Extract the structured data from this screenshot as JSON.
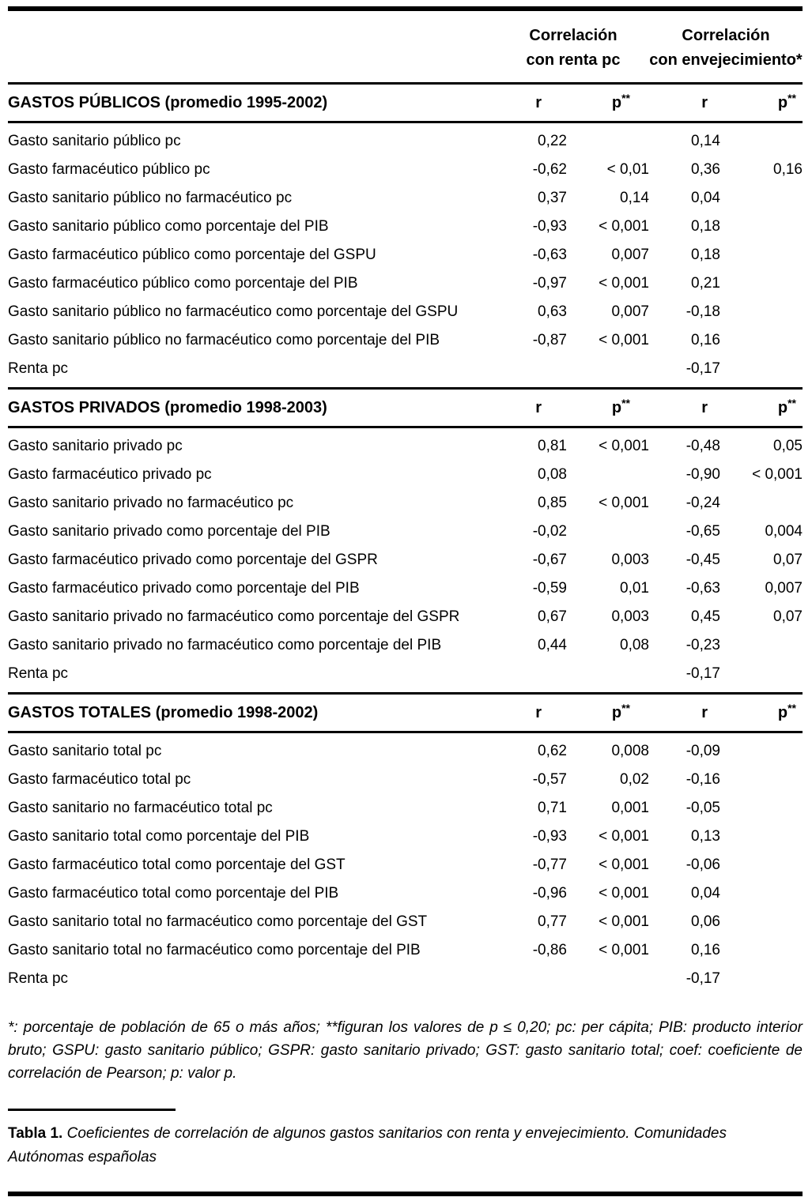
{
  "header": {
    "group1_line1": "Correlación",
    "group1_line2": "con renta pc",
    "group2_line1": "Correlación",
    "group2_line2": "con envejecimiento*"
  },
  "sections": [
    {
      "title": "GASTOS PÚBLICOS",
      "subtitle": "(promedio 1995-2002)",
      "col_headers": [
        "r",
        "p**",
        "r",
        "p**"
      ],
      "rows": [
        {
          "label": "Gasto sanitario público pc",
          "values": [
            "0,22",
            "",
            "0,14",
            ""
          ]
        },
        {
          "label": "Gasto farmacéutico público pc",
          "values": [
            "-0,62",
            "< 0,01",
            "0,36",
            "0,16"
          ]
        },
        {
          "label": "Gasto sanitario público no farmacéutico pc",
          "values": [
            "0,37",
            "0,14",
            "0,04",
            ""
          ]
        },
        {
          "label": "Gasto sanitario público como porcentaje del PIB",
          "values": [
            "-0,93",
            "< 0,001",
            "0,18",
            ""
          ]
        },
        {
          "label": "Gasto farmacéutico público como porcentaje del GSPU",
          "values": [
            "-0,63",
            "0,007",
            "0,18",
            ""
          ]
        },
        {
          "label": "Gasto farmacéutico público como porcentaje del PIB",
          "values": [
            "-0,97",
            "< 0,001",
            "0,21",
            ""
          ]
        },
        {
          "label": "Gasto sanitario público no farmacéutico como porcentaje del GSPU",
          "values": [
            "0,63",
            "0,007",
            "-0,18",
            ""
          ]
        },
        {
          "label": "Gasto sanitario público no farmacéutico como porcentaje del PIB",
          "values": [
            "-0,87",
            "< 0,001",
            "0,16",
            ""
          ]
        },
        {
          "label": "Renta pc",
          "values": [
            "",
            "",
            "-0,17",
            ""
          ]
        }
      ]
    },
    {
      "title": "GASTOS PRIVADOS",
      "subtitle": "(promedio 1998-2003)",
      "col_headers": [
        "r",
        "p**",
        "r",
        "p**"
      ],
      "rows": [
        {
          "label": "Gasto sanitario privado pc",
          "values": [
            "0,81",
            "< 0,001",
            "-0,48",
            "0,05"
          ]
        },
        {
          "label": "Gasto farmacéutico privado pc",
          "values": [
            "0,08",
            "",
            "-0,90",
            "< 0,001"
          ]
        },
        {
          "label": "Gasto sanitario privado no farmacéutico pc",
          "values": [
            "0,85",
            "< 0,001",
            "-0,24",
            ""
          ]
        },
        {
          "label": "Gasto sanitario privado como porcentaje del PIB",
          "values": [
            "-0,02",
            "",
            "-0,65",
            "0,004"
          ]
        },
        {
          "label": "Gasto farmacéutico privado como porcentaje del GSPR",
          "values": [
            "-0,67",
            "0,003",
            "-0,45",
            "0,07"
          ]
        },
        {
          "label": "Gasto farmacéutico privado como porcentaje del PIB",
          "values": [
            "-0,59",
            "0,01",
            "-0,63",
            "0,007"
          ]
        },
        {
          "label": "Gasto sanitario privado no farmacéutico como porcentaje del GSPR",
          "values": [
            "0,67",
            "0,003",
            "0,45",
            "0,07"
          ]
        },
        {
          "label": "Gasto sanitario privado no farmacéutico como porcentaje del PIB",
          "values": [
            "0,44",
            "0,08",
            "-0,23",
            ""
          ]
        },
        {
          "label": "Renta pc",
          "values": [
            "",
            "",
            "-0,17",
            ""
          ]
        }
      ]
    },
    {
      "title": "GASTOS TOTALES",
      "subtitle": "(promedio 1998-2002)",
      "col_headers": [
        "r",
        "p**",
        "r",
        "p**"
      ],
      "rows": [
        {
          "label": "Gasto sanitario total pc",
          "values": [
            "0,62",
            "0,008",
            "-0,09",
            ""
          ]
        },
        {
          "label": "Gasto farmacéutico total pc",
          "values": [
            "-0,57",
            "0,02",
            "-0,16",
            ""
          ]
        },
        {
          "label": "Gasto sanitario no farmacéutico total pc",
          "values": [
            "0,71",
            "0,001",
            "-0,05",
            ""
          ]
        },
        {
          "label": "Gasto sanitario total como porcentaje del PIB",
          "values": [
            "-0,93",
            "< 0,001",
            "0,13",
            ""
          ]
        },
        {
          "label": "Gasto farmacéutico total como porcentaje del GST",
          "values": [
            "-0,77",
            "< 0,001",
            "-0,06",
            ""
          ]
        },
        {
          "label": "Gasto farmacéutico total como porcentaje del PIB",
          "values": [
            "-0,96",
            "< 0,001",
            "0,04",
            ""
          ]
        },
        {
          "label": "Gasto sanitario total no farmacéutico como porcentaje del GST",
          "values": [
            "0,77",
            "< 0,001",
            "0,06",
            ""
          ]
        },
        {
          "label": "Gasto sanitario total no farmacéutico como porcentaje del PIB",
          "values": [
            "-0,86",
            "< 0,001",
            "0,16",
            ""
          ]
        },
        {
          "label": "Renta pc",
          "values": [
            "",
            "",
            "-0,17",
            ""
          ]
        }
      ]
    }
  ],
  "footnote": "*: porcentaje de población de 65 o más años; **figuran los valores de p ≤ 0,20; pc: per cápita; PIB: producto interior bruto; GSPU: gasto sanitario público; GSPR: gasto sanitario privado; GST: gasto sanitario total; coef: coeficiente de correlación de Pearson; p: valor p.",
  "caption": {
    "label": "Tabla 1.",
    "text": " Coeficientes de correlación de algunos gastos sanitarios con renta y envejecimiento. Comunidades Autónomas españolas"
  }
}
